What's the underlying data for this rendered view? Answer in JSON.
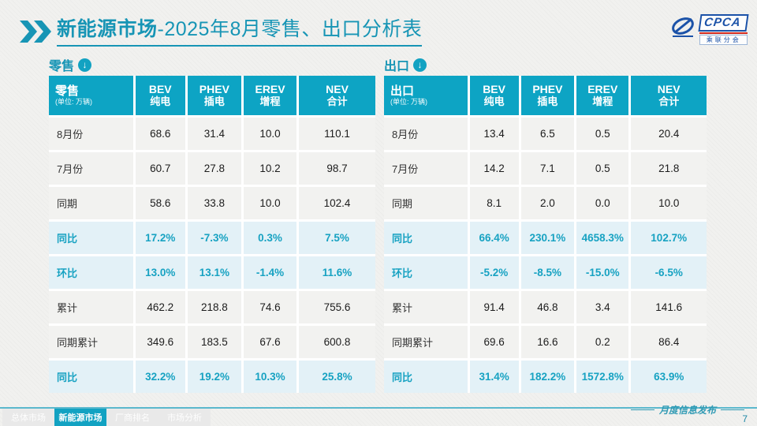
{
  "title": {
    "main": "新能源市场",
    "rest": "-2025年8月零售、出口分析表"
  },
  "logo": {
    "cpca": "CPCA",
    "sub": "乘联分会"
  },
  "watermark": "CPCA 乘联分会",
  "icons": {
    "down_arrow": "↓"
  },
  "colors": {
    "accent_teal": "#12a2c2",
    "header_bg": "#0da4c4",
    "highlight_bg": "#e3f1f7",
    "highlight_text": "#17a2c2",
    "logo_blue": "#1b52a8",
    "logo_red": "#d42b1e"
  },
  "tables": [
    {
      "section_label": "零售",
      "corner_title": "零售",
      "unit": "(单位: 万辆)",
      "columns": [
        {
          "en": "BEV",
          "cn": "纯电"
        },
        {
          "en": "PHEV",
          "cn": "插电"
        },
        {
          "en": "EREV",
          "cn": "增程"
        },
        {
          "en": "NEV",
          "cn": "合计"
        }
      ],
      "rows": [
        {
          "label": "8月份",
          "values": [
            "68.6",
            "31.4",
            "10.0",
            "110.1"
          ],
          "highlight": false
        },
        {
          "label": "7月份",
          "values": [
            "60.7",
            "27.8",
            "10.2",
            "98.7"
          ],
          "highlight": false
        },
        {
          "label": "同期",
          "values": [
            "58.6",
            "33.8",
            "10.0",
            "102.4"
          ],
          "highlight": false
        },
        {
          "label": "同比",
          "values": [
            "17.2%",
            "-7.3%",
            "0.3%",
            "7.5%"
          ],
          "highlight": true
        },
        {
          "label": "环比",
          "values": [
            "13.0%",
            "13.1%",
            "-1.4%",
            "11.6%"
          ],
          "highlight": true
        },
        {
          "label": "累计",
          "values": [
            "462.2",
            "218.8",
            "74.6",
            "755.6"
          ],
          "highlight": false
        },
        {
          "label": "同期累计",
          "values": [
            "349.6",
            "183.5",
            "67.6",
            "600.8"
          ],
          "highlight": false
        },
        {
          "label": "同比",
          "values": [
            "32.2%",
            "19.2%",
            "10.3%",
            "25.8%"
          ],
          "highlight": true
        }
      ]
    },
    {
      "section_label": "出口",
      "corner_title": "出口",
      "unit": "(单位: 万辆)",
      "columns": [
        {
          "en": "BEV",
          "cn": "纯电"
        },
        {
          "en": "PHEV",
          "cn": "插电"
        },
        {
          "en": "EREV",
          "cn": "增程"
        },
        {
          "en": "NEV",
          "cn": "合计"
        }
      ],
      "rows": [
        {
          "label": "8月份",
          "values": [
            "13.4",
            "6.5",
            "0.5",
            "20.4"
          ],
          "highlight": false
        },
        {
          "label": "7月份",
          "values": [
            "14.2",
            "7.1",
            "0.5",
            "21.8"
          ],
          "highlight": false
        },
        {
          "label": "同期",
          "values": [
            "8.1",
            "2.0",
            "0.0",
            "10.0"
          ],
          "highlight": false
        },
        {
          "label": "同比",
          "values": [
            "66.4%",
            "230.1%",
            "4658.3%",
            "102.7%"
          ],
          "highlight": true
        },
        {
          "label": "环比",
          "values": [
            "-5.2%",
            "-8.5%",
            "-15.0%",
            "-6.5%"
          ],
          "highlight": true
        },
        {
          "label": "累计",
          "values": [
            "91.4",
            "46.8",
            "3.4",
            "141.6"
          ],
          "highlight": false
        },
        {
          "label": "同期累计",
          "values": [
            "69.6",
            "16.6",
            "0.2",
            "86.4"
          ],
          "highlight": false
        },
        {
          "label": "同比",
          "values": [
            "31.4%",
            "182.2%",
            "1572.8%",
            "63.9%"
          ],
          "highlight": true
        }
      ]
    }
  ],
  "footer": {
    "tabs": [
      {
        "label": "总体市场",
        "active": false
      },
      {
        "label": "新能源市场",
        "active": true
      },
      {
        "label": "厂商排名",
        "active": false
      },
      {
        "label": "市场分析",
        "active": false
      }
    ],
    "release_label": "月度信息发布",
    "page_number": "7"
  }
}
